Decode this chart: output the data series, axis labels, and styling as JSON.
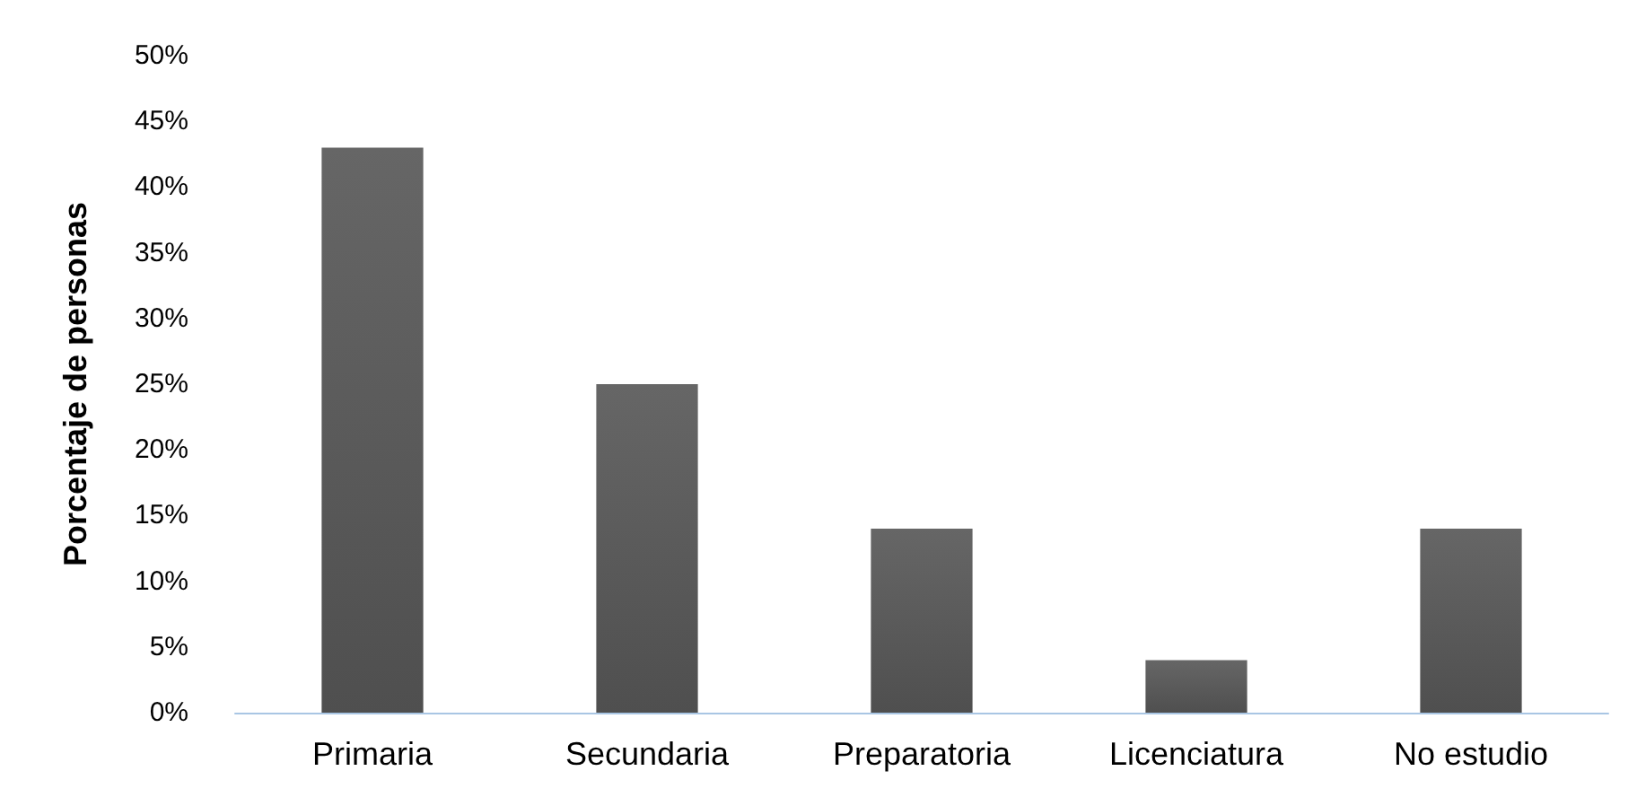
{
  "chart_data": {
    "type": "bar",
    "ylabel": "Porcentaje de personas",
    "categories": [
      "Primaria",
      "Secundaria",
      "Preparatoria",
      "Licenciatura",
      "No estudio"
    ],
    "values": [
      43,
      25,
      14,
      4,
      14
    ],
    "color": "#666666",
    "ylim": [
      0,
      50
    ],
    "yticks": [
      {
        "value": 0,
        "label": "0%"
      },
      {
        "value": 5,
        "label": "5%"
      },
      {
        "value": 10,
        "label": "10%"
      },
      {
        "value": 15,
        "label": "15%"
      },
      {
        "value": 20,
        "label": "20%"
      },
      {
        "value": 25,
        "label": "25%"
      },
      {
        "value": 30,
        "label": "30%"
      },
      {
        "value": 35,
        "label": "35%"
      },
      {
        "value": 40,
        "label": "40%"
      },
      {
        "value": 45,
        "label": "45%"
      },
      {
        "value": 50,
        "label": "50%"
      }
    ],
    "grid": false
  }
}
